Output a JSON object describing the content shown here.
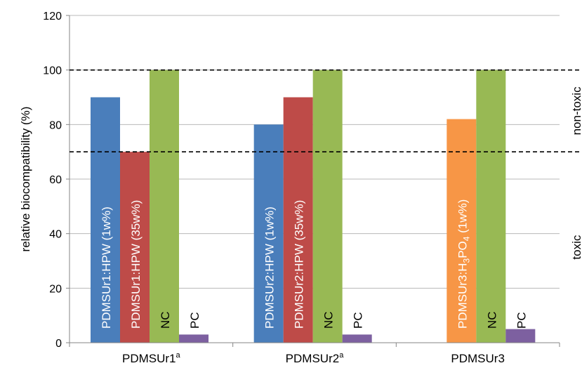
{
  "chart_data": {
    "type": "bar",
    "ylabel": "relative biocompatibility (%)",
    "ylim": [
      0,
      120
    ],
    "yticks": [
      "0",
      "20",
      "40",
      "60",
      "80",
      "100",
      "120"
    ],
    "grid": true,
    "groups": [
      {
        "label": "PDMSUr1",
        "sup": "a",
        "bars": [
          {
            "label": "PDMSUr1:HPW (1w%)",
            "value": 90,
            "color": "#4a7ebb"
          },
          {
            "label": "PDMSUr1:HPW (35w%)",
            "value": 70,
            "color": "#be4b48"
          },
          {
            "label": "NC",
            "value": 100,
            "color": "#98b954"
          },
          {
            "label": "PC",
            "value": 3,
            "color": "#7d60a0"
          }
        ]
      },
      {
        "label": "PDMSUr2",
        "sup": "a",
        "bars": [
          {
            "label": "PDMSUr2:HPW (1w%)",
            "value": 80,
            "color": "#4a7ebb"
          },
          {
            "label": "PDMSUr2:HPW (35w%)",
            "value": 90,
            "color": "#be4b48"
          },
          {
            "label": "NC",
            "value": 100,
            "color": "#98b954"
          },
          {
            "label": "PC",
            "value": 3,
            "color": "#7d60a0"
          }
        ]
      },
      {
        "label": "PDMSUr3",
        "sup": "",
        "bars": [
          {
            "label": "",
            "value": 0,
            "color": "#ffffff"
          },
          {
            "label": "PDMSUr3:H3PO4 (1w%)",
            "value": 82,
            "color": "#f79646"
          },
          {
            "label": "NC",
            "value": 100,
            "color": "#98b954"
          },
          {
            "label": "PC",
            "value": 5,
            "color": "#7d60a0"
          }
        ]
      }
    ],
    "thresholds": [
      {
        "value": 100,
        "style": "dashed"
      },
      {
        "value": 70,
        "style": "dashed"
      }
    ],
    "region_labels": [
      {
        "text": "non-toxic",
        "y": 85
      },
      {
        "text": "toxic",
        "y": 35
      }
    ]
  }
}
